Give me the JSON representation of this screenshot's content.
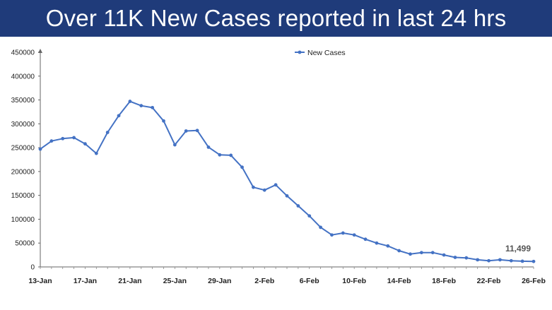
{
  "header": {
    "title": "Over 11K New Cases reported in last 24 hrs"
  },
  "colors": {
    "banner": "#1f3b7a",
    "line": "#4472c4",
    "title_text": "#ffffff"
  },
  "chart_data": {
    "type": "line",
    "title": "",
    "xlabel": "",
    "ylabel": "",
    "ylim": [
      0,
      450000
    ],
    "y_ticks": [
      0,
      50000,
      100000,
      150000,
      200000,
      250000,
      300000,
      350000,
      400000,
      450000
    ],
    "grid": false,
    "legend": {
      "placement": "top-center",
      "entries": [
        "New Cases"
      ]
    },
    "x_tick_labels": [
      "13-Jan",
      "17-Jan",
      "21-Jan",
      "25-Jan",
      "29-Jan",
      "2-Feb",
      "6-Feb",
      "10-Feb",
      "14-Feb",
      "18-Feb",
      "22-Feb",
      "26-Feb"
    ],
    "x": [
      "13-Jan",
      "14-Jan",
      "15-Jan",
      "16-Jan",
      "17-Jan",
      "18-Jan",
      "19-Jan",
      "20-Jan",
      "21-Jan",
      "22-Jan",
      "23-Jan",
      "24-Jan",
      "25-Jan",
      "26-Jan",
      "27-Jan",
      "28-Jan",
      "29-Jan",
      "30-Jan",
      "31-Jan",
      "1-Feb",
      "2-Feb",
      "3-Feb",
      "4-Feb",
      "5-Feb",
      "6-Feb",
      "7-Feb",
      "8-Feb",
      "9-Feb",
      "10-Feb",
      "11-Feb",
      "12-Feb",
      "13-Feb",
      "14-Feb",
      "15-Feb",
      "16-Feb",
      "17-Feb",
      "18-Feb",
      "19-Feb",
      "20-Feb",
      "21-Feb",
      "22-Feb",
      "23-Feb",
      "24-Feb",
      "25-Feb",
      "26-Feb"
    ],
    "series": [
      {
        "name": "New Cases",
        "values": [
          247000,
          264000,
          269000,
          271000,
          258000,
          238000,
          282000,
          317000,
          347000,
          338000,
          334000,
          306000,
          256000,
          285000,
          286000,
          251000,
          235000,
          234000,
          209000,
          167000,
          161000,
          172000,
          149000,
          128000,
          107000,
          83000,
          67000,
          71000,
          67000,
          58000,
          50000,
          44000,
          34000,
          27000,
          30000,
          30000,
          25000,
          20000,
          19000,
          15000,
          13000,
          15000,
          13000,
          12000,
          11499
        ]
      }
    ],
    "annotations": [
      {
        "x": "26-Feb",
        "y": 11499,
        "text": "11,499"
      }
    ]
  }
}
